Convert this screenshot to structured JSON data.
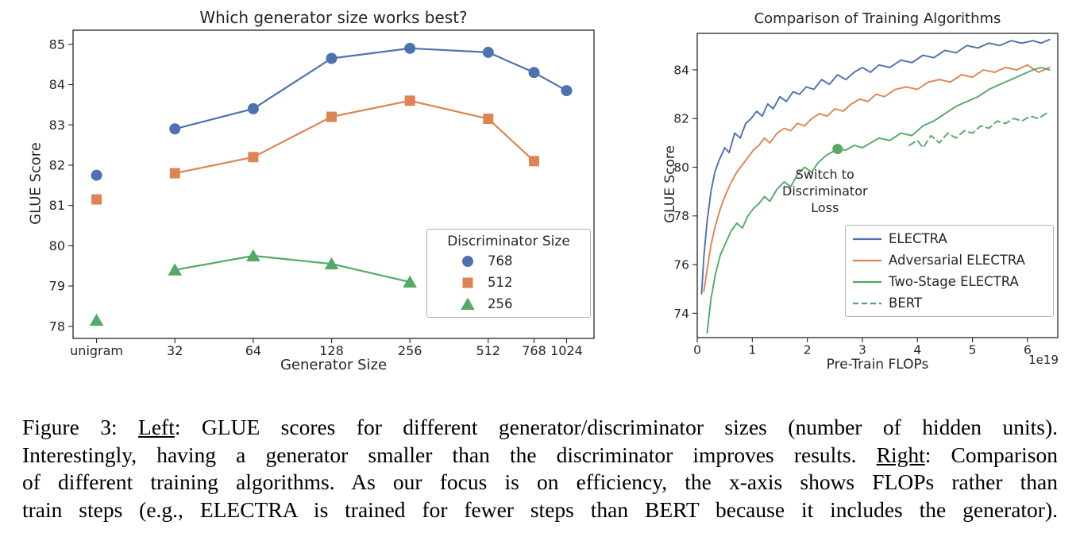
{
  "colors": {
    "blue": "#4C72B0",
    "orange": "#DD8452",
    "green": "#55A868",
    "axis": "#262626"
  },
  "chart_data": [
    {
      "type": "line",
      "title": "Which generator size works best?",
      "xlabel": "Generator Size",
      "ylabel": "GLUE Score",
      "x_scale": "log2",
      "xlim": [
        3.7,
        10.35
      ],
      "ylim": [
        77.7,
        85.35
      ],
      "grid": false,
      "xticks": {
        "pos": [
          4,
          5,
          6,
          7,
          8,
          9,
          9.585,
          10
        ],
        "labels": [
          "unigram",
          "32",
          "64",
          "128",
          "256",
          "512",
          "768",
          "1024"
        ]
      },
      "yticks": [
        78,
        79,
        80,
        81,
        82,
        83,
        84,
        85
      ],
      "legend": {
        "title": "Discriminator Size",
        "position": "lower right"
      },
      "series": [
        {
          "name": "768",
          "color": "#4C72B0",
          "marker": "circle",
          "segments": [
            [
              [
                4,
                81.75
              ]
            ],
            [
              [
                5,
                82.9
              ],
              [
                6,
                83.4
              ],
              [
                7,
                84.65
              ],
              [
                8,
                84.9
              ],
              [
                9,
                84.8
              ],
              [
                9.585,
                84.3
              ],
              [
                10,
                83.85
              ]
            ]
          ]
        },
        {
          "name": "512",
          "color": "#DD8452",
          "marker": "square",
          "segments": [
            [
              [
                4,
                81.15
              ]
            ],
            [
              [
                5,
                81.8
              ],
              [
                6,
                82.2
              ],
              [
                7,
                83.2
              ],
              [
                8,
                83.6
              ],
              [
                9,
                83.15
              ],
              [
                9.585,
                82.1
              ]
            ]
          ]
        },
        {
          "name": "256",
          "color": "#55A868",
          "marker": "triangle",
          "segments": [
            [
              [
                4,
                78.15
              ]
            ],
            [
              [
                5,
                79.4
              ],
              [
                6,
                79.75
              ],
              [
                7,
                79.55
              ],
              [
                8,
                79.1
              ]
            ]
          ]
        }
      ]
    },
    {
      "type": "line",
      "title": "Comparison of Training Algorithms",
      "xlabel": "Pre-Train FLOPs",
      "ylabel": "GLUE Score",
      "x_offset_text": "1e19",
      "xlim": [
        0,
        6.55
      ],
      "ylim": [
        73.0,
        85.5
      ],
      "grid": false,
      "xticks": {
        "pos": [
          0,
          1,
          2,
          3,
          4,
          5,
          6
        ],
        "labels": [
          "0",
          "1",
          "2",
          "3",
          "4",
          "5",
          "6"
        ]
      },
      "yticks": [
        74,
        76,
        78,
        80,
        82,
        84
      ],
      "legend": {
        "position": "lower right"
      },
      "annotation": {
        "lines": [
          "Switch to",
          "Discriminator",
          "Loss"
        ],
        "x": 2.32,
        "y": 80.05,
        "marker": {
          "x": 2.55,
          "y": 80.75,
          "color": "#55A868"
        }
      },
      "series": [
        {
          "name": "ELECTRA",
          "color": "#4C72B0",
          "dash": false,
          "segments": [
            [
              [
                0.08,
                74.8
              ],
              [
                0.12,
                76.3
              ],
              [
                0.18,
                77.8
              ],
              [
                0.25,
                79.0
              ],
              [
                0.32,
                79.8
              ],
              [
                0.4,
                80.3
              ],
              [
                0.5,
                80.8
              ],
              [
                0.58,
                80.6
              ],
              [
                0.68,
                81.4
              ],
              [
                0.78,
                81.2
              ],
              [
                0.88,
                81.8
              ],
              [
                0.98,
                82.0
              ],
              [
                1.08,
                82.3
              ],
              [
                1.18,
                82.1
              ],
              [
                1.28,
                82.6
              ],
              [
                1.38,
                82.4
              ],
              [
                1.5,
                82.9
              ],
              [
                1.62,
                82.7
              ],
              [
                1.74,
                83.1
              ],
              [
                1.86,
                83.0
              ],
              [
                1.98,
                83.3
              ],
              [
                2.12,
                83.2
              ],
              [
                2.26,
                83.6
              ],
              [
                2.4,
                83.4
              ],
              [
                2.55,
                83.8
              ],
              [
                2.7,
                83.6
              ],
              [
                2.85,
                83.9
              ],
              [
                3.0,
                84.1
              ],
              [
                3.15,
                83.9
              ],
              [
                3.3,
                84.2
              ],
              [
                3.5,
                84.1
              ],
              [
                3.7,
                84.4
              ],
              [
                3.9,
                84.3
              ],
              [
                4.1,
                84.6
              ],
              [
                4.3,
                84.5
              ],
              [
                4.5,
                84.8
              ],
              [
                4.7,
                84.7
              ],
              [
                4.9,
                85.0
              ],
              [
                5.1,
                84.9
              ],
              [
                5.3,
                85.1
              ],
              [
                5.5,
                85.0
              ],
              [
                5.7,
                85.2
              ],
              [
                5.9,
                85.1
              ],
              [
                6.1,
                85.2
              ],
              [
                6.25,
                85.1
              ],
              [
                6.4,
                85.25
              ]
            ]
          ]
        },
        {
          "name": "Adversarial ELECTRA",
          "color": "#DD8452",
          "dash": false,
          "segments": [
            [
              [
                0.12,
                74.9
              ],
              [
                0.18,
                75.8
              ],
              [
                0.25,
                76.8
              ],
              [
                0.33,
                77.6
              ],
              [
                0.42,
                78.3
              ],
              [
                0.52,
                78.9
              ],
              [
                0.62,
                79.4
              ],
              [
                0.72,
                79.8
              ],
              [
                0.82,
                80.1
              ],
              [
                0.92,
                80.4
              ],
              [
                1.02,
                80.7
              ],
              [
                1.12,
                80.9
              ],
              [
                1.22,
                81.2
              ],
              [
                1.32,
                81.0
              ],
              [
                1.45,
                81.4
              ],
              [
                1.58,
                81.6
              ],
              [
                1.7,
                81.5
              ],
              [
                1.82,
                81.8
              ],
              [
                1.95,
                81.7
              ],
              [
                2.08,
                82.0
              ],
              [
                2.22,
                82.2
              ],
              [
                2.36,
                82.1
              ],
              [
                2.5,
                82.4
              ],
              [
                2.65,
                82.3
              ],
              [
                2.8,
                82.6
              ],
              [
                2.95,
                82.8
              ],
              [
                3.1,
                82.7
              ],
              [
                3.25,
                83.0
              ],
              [
                3.4,
                82.9
              ],
              [
                3.6,
                83.2
              ],
              [
                3.8,
                83.3
              ],
              [
                4.0,
                83.2
              ],
              [
                4.2,
                83.5
              ],
              [
                4.4,
                83.6
              ],
              [
                4.6,
                83.5
              ],
              [
                4.8,
                83.8
              ],
              [
                5.0,
                83.7
              ],
              [
                5.2,
                84.0
              ],
              [
                5.4,
                83.9
              ],
              [
                5.6,
                84.1
              ],
              [
                5.8,
                84.0
              ],
              [
                6.0,
                84.2
              ],
              [
                6.2,
                83.9
              ],
              [
                6.4,
                84.1
              ]
            ]
          ]
        },
        {
          "name": "Two-Stage ELECTRA",
          "color": "#55A868",
          "dash": false,
          "segments": [
            [
              [
                0.18,
                73.2
              ],
              [
                0.25,
                74.6
              ],
              [
                0.33,
                75.6
              ],
              [
                0.42,
                76.4
              ],
              [
                0.52,
                76.9
              ],
              [
                0.62,
                77.4
              ],
              [
                0.72,
                77.7
              ],
              [
                0.82,
                77.5
              ],
              [
                0.92,
                78.0
              ],
              [
                1.02,
                78.3
              ],
              [
                1.12,
                78.5
              ],
              [
                1.22,
                78.8
              ],
              [
                1.32,
                78.6
              ],
              [
                1.45,
                79.1
              ],
              [
                1.58,
                79.4
              ],
              [
                1.7,
                79.2
              ],
              [
                1.82,
                79.7
              ],
              [
                1.95,
                80.0
              ],
              [
                2.08,
                79.8
              ],
              [
                2.2,
                80.2
              ],
              [
                2.35,
                80.5
              ],
              [
                2.55,
                80.75
              ],
              [
                2.7,
                80.7
              ],
              [
                2.85,
                80.9
              ],
              [
                3.0,
                80.8
              ],
              [
                3.15,
                81.0
              ],
              [
                3.3,
                81.2
              ],
              [
                3.5,
                81.1
              ],
              [
                3.7,
                81.4
              ],
              [
                3.9,
                81.3
              ],
              [
                4.1,
                81.7
              ],
              [
                4.3,
                81.9
              ],
              [
                4.5,
                82.2
              ],
              [
                4.7,
                82.5
              ],
              [
                4.9,
                82.7
              ],
              [
                5.1,
                82.9
              ],
              [
                5.3,
                83.2
              ],
              [
                5.5,
                83.4
              ],
              [
                5.7,
                83.6
              ],
              [
                5.9,
                83.8
              ],
              [
                6.1,
                84.0
              ],
              [
                6.25,
                84.1
              ],
              [
                6.4,
                84.0
              ]
            ]
          ]
        },
        {
          "name": "BERT",
          "color": "#55A868",
          "dash": true,
          "segments": [
            [
              [
                3.85,
                80.9
              ],
              [
                4.0,
                81.1
              ],
              [
                4.1,
                80.8
              ],
              [
                4.25,
                81.3
              ],
              [
                4.4,
                81.0
              ],
              [
                4.55,
                81.4
              ],
              [
                4.7,
                81.2
              ],
              [
                4.85,
                81.5
              ],
              [
                5.0,
                81.4
              ],
              [
                5.15,
                81.7
              ],
              [
                5.3,
                81.6
              ],
              [
                5.45,
                81.9
              ],
              [
                5.6,
                81.8
              ],
              [
                5.75,
                82.0
              ],
              [
                5.9,
                81.9
              ],
              [
                6.05,
                82.1
              ],
              [
                6.2,
                82.0
              ],
              [
                6.4,
                82.3
              ]
            ]
          ]
        }
      ]
    }
  ],
  "caption": {
    "lines": [
      [
        {
          "t": "Figure 3: ",
          "u": false
        },
        {
          "t": "Left",
          "u": true
        },
        {
          "t": ": GLUE scores for different generator/discriminator sizes (number of hidden units).",
          "u": false
        }
      ],
      [
        {
          "t": "Interestingly, having a generator smaller than the discriminator improves results. ",
          "u": false
        },
        {
          "t": "Right",
          "u": true
        },
        {
          "t": ": Comparison",
          "u": false
        }
      ],
      [
        {
          "t": "of different training algorithms. As our focus is on efficiency, the x-axis shows FLOPs rather than",
          "u": false
        }
      ],
      [
        {
          "t": "train steps (e.g., ELECTRA is trained for fewer steps than BERT because it includes the generator).",
          "u": false
        }
      ]
    ]
  }
}
